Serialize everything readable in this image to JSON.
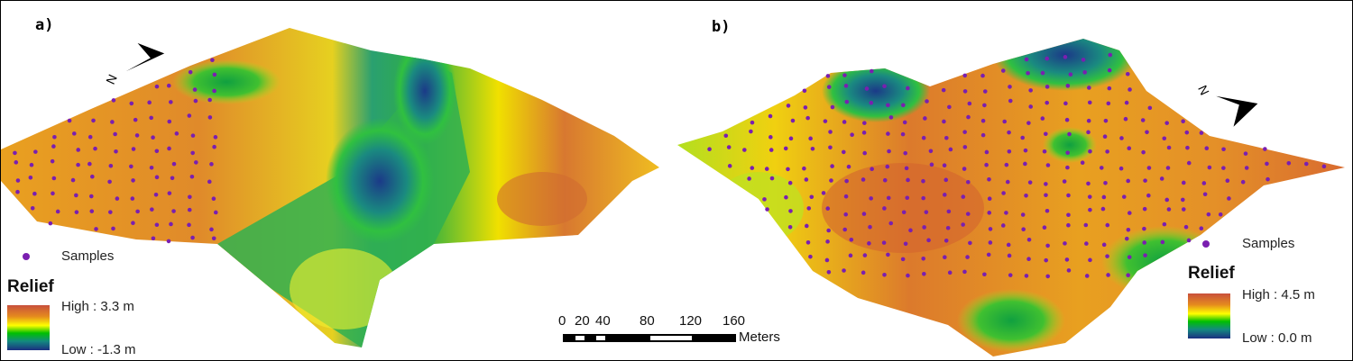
{
  "panels": [
    {
      "label": "a)",
      "legend": {
        "samples_label": "Samples",
        "title": "Relief",
        "high": "High : 3.3 m",
        "low": "Low : -1.3 m"
      },
      "north_label": "N"
    },
    {
      "label": "b)",
      "legend": {
        "samples_label": "Samples",
        "title": "Relief",
        "high": "High : 4.5 m",
        "low": "Low : 0.0 m"
      },
      "north_label": "N"
    }
  ],
  "scale_bar": {
    "ticks": [
      "0",
      "20",
      "40",
      "80",
      "120",
      "160"
    ],
    "unit": "Meters"
  },
  "colors": {
    "high": "#c8503c",
    "mid_high": "#e58a1e",
    "mid": "#ffff00",
    "mid_low": "#00c000",
    "low": "#1b2f80",
    "samples": "#7a1fb0"
  }
}
